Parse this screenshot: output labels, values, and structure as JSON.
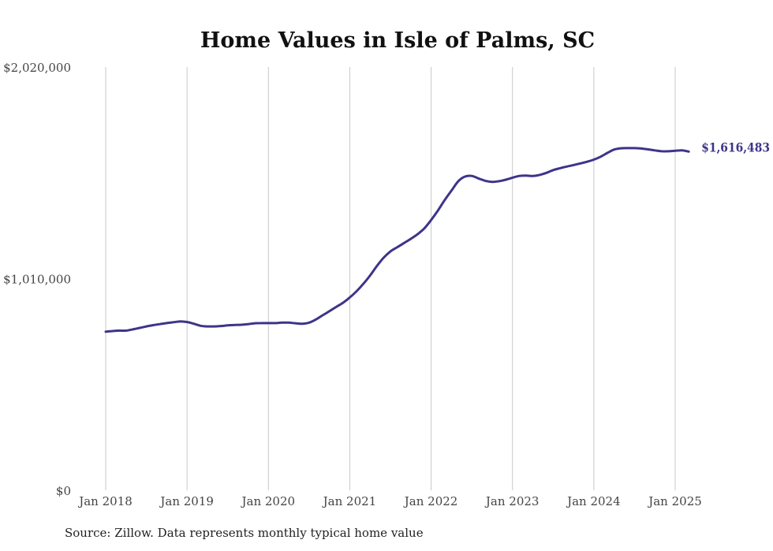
{
  "chart_data": {
    "type": "line",
    "title": "Home Values in Isle of Palms, SC",
    "xlabel": "",
    "ylabel": "",
    "y_ticks": [
      "$0",
      "$1,010,000",
      "$2,020,000"
    ],
    "ylim": [
      0,
      2020000
    ],
    "x_ticks": [
      "Jan 2018",
      "Jan 2019",
      "Jan 2020",
      "Jan 2021",
      "Jan 2022",
      "Jan 2023",
      "Jan 2024",
      "Jan 2025"
    ],
    "x_tick_years": [
      2018,
      2019,
      2020,
      2021,
      2022,
      2023,
      2024,
      2025
    ],
    "grid": "vertical",
    "color": "#3d3489",
    "end_label": "$1,616,483",
    "series": [
      {
        "x": [
          "2018-01",
          "2018-02",
          "2018-03",
          "2018-04",
          "2018-05",
          "2018-06",
          "2018-07",
          "2018-08",
          "2018-09",
          "2018-10",
          "2018-11",
          "2018-12",
          "2019-01",
          "2019-02",
          "2019-03",
          "2019-04",
          "2019-05",
          "2019-06",
          "2019-07",
          "2019-08",
          "2019-09",
          "2019-10",
          "2019-11",
          "2019-12",
          "2020-01",
          "2020-02",
          "2020-03",
          "2020-04",
          "2020-05",
          "2020-06",
          "2020-07",
          "2020-08",
          "2020-09",
          "2020-10",
          "2020-11",
          "2020-12",
          "2021-01",
          "2021-02",
          "2021-03",
          "2021-04",
          "2021-05",
          "2021-06",
          "2021-07",
          "2021-08",
          "2021-09",
          "2021-10",
          "2021-11",
          "2021-12",
          "2022-01",
          "2022-02",
          "2022-03",
          "2022-04",
          "2022-05",
          "2022-06",
          "2022-07",
          "2022-08",
          "2022-09",
          "2022-10",
          "2022-11",
          "2022-12",
          "2023-01",
          "2023-02",
          "2023-03",
          "2023-04",
          "2023-05",
          "2023-06",
          "2023-07",
          "2023-08",
          "2023-09",
          "2023-10",
          "2023-11",
          "2023-12",
          "2024-01",
          "2024-02",
          "2024-03",
          "2024-04",
          "2024-05",
          "2024-06",
          "2024-07",
          "2024-08",
          "2024-09",
          "2024-10",
          "2024-11",
          "2024-12",
          "2025-01",
          "2025-02",
          "2025-03"
        ],
        "values": [
          757000,
          760000,
          762000,
          762000,
          768000,
          775000,
          782000,
          788000,
          793000,
          798000,
          802000,
          806000,
          803000,
          795000,
          785000,
          782000,
          782000,
          784000,
          787000,
          789000,
          790000,
          793000,
          797000,
          798000,
          798000,
          798000,
          800000,
          800000,
          797000,
          795000,
          800000,
          815000,
          835000,
          855000,
          875000,
          895000,
          920000,
          950000,
          985000,
          1025000,
          1070000,
          1110000,
          1140000,
          1160000,
          1180000,
          1200000,
          1222000,
          1250000,
          1290000,
          1335000,
          1385000,
          1430000,
          1475000,
          1497000,
          1500000,
          1488000,
          1477000,
          1472000,
          1475000,
          1482000,
          1492000,
          1500000,
          1502000,
          1500000,
          1505000,
          1515000,
          1528000,
          1537000,
          1545000,
          1552000,
          1560000,
          1568000,
          1578000,
          1592000,
          1610000,
          1626000,
          1632000,
          1633000,
          1633000,
          1631000,
          1627000,
          1622000,
          1618000,
          1618000,
          1620000,
          1622000,
          1616483
        ]
      }
    ]
  },
  "source_note": "Source: Zillow. Data represents monthly typical home value"
}
